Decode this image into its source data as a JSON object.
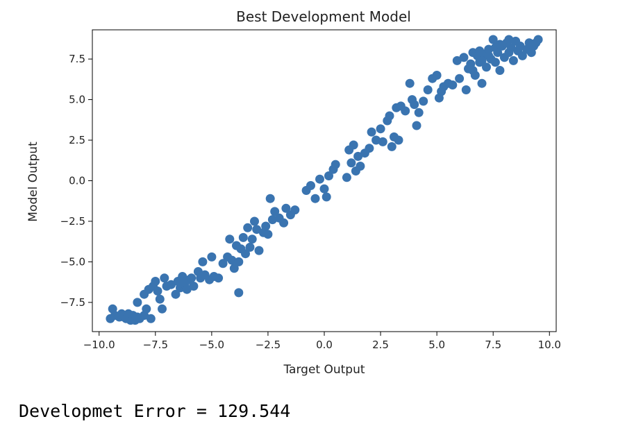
{
  "output_text": "Developmet Error = 129.544",
  "chart_data": {
    "type": "scatter",
    "title": "Best Development Model",
    "xlabel": "Target Output",
    "ylabel": "Model Output",
    "xlim": [
      -10.3,
      10.3
    ],
    "ylim": [
      -9.3,
      9.3
    ],
    "xticks": [
      -10.0,
      -7.5,
      -5.0,
      -2.5,
      0.0,
      2.5,
      5.0,
      7.5,
      10.0
    ],
    "xtick_labels": [
      "−10.0",
      "−7.5",
      "−5.0",
      "−2.5",
      "0.0",
      "2.5",
      "5.0",
      "7.5",
      "10.0"
    ],
    "yticks": [
      -7.5,
      -5.0,
      -2.5,
      0.0,
      2.5,
      5.0,
      7.5
    ],
    "ytick_labels": [
      "−7.5",
      "−5.0",
      "−2.5",
      "0.0",
      "2.5",
      "5.0",
      "7.5"
    ],
    "grid": false,
    "marker_color": "#3a74b0",
    "points": [
      [
        -9.5,
        -8.5
      ],
      [
        -9.4,
        -7.9
      ],
      [
        -9.3,
        -8.3
      ],
      [
        -9.1,
        -8.4
      ],
      [
        -9.0,
        -8.2
      ],
      [
        -8.9,
        -8.4
      ],
      [
        -8.8,
        -8.5
      ],
      [
        -8.7,
        -8.2
      ],
      [
        -8.6,
        -8.6
      ],
      [
        -8.5,
        -8.3
      ],
      [
        -8.4,
        -8.6
      ],
      [
        -8.3,
        -8.4
      ],
      [
        -8.2,
        -8.5
      ],
      [
        -8.0,
        -8.3
      ],
      [
        -7.9,
        -7.9
      ],
      [
        -7.7,
        -8.5
      ],
      [
        -8.3,
        -7.5
      ],
      [
        -8.0,
        -7.0
      ],
      [
        -7.8,
        -6.7
      ],
      [
        -7.6,
        -6.5
      ],
      [
        -7.5,
        -6.2
      ],
      [
        -7.4,
        -6.8
      ],
      [
        -7.3,
        -7.3
      ],
      [
        -7.2,
        -7.9
      ],
      [
        -7.1,
        -6.0
      ],
      [
        -7.0,
        -6.5
      ],
      [
        -6.8,
        -6.4
      ],
      [
        -6.6,
        -7.0
      ],
      [
        -6.5,
        -6.2
      ],
      [
        -6.4,
        -6.6
      ],
      [
        -6.3,
        -5.9
      ],
      [
        -6.2,
        -6.4
      ],
      [
        -6.1,
        -6.7
      ],
      [
        -6.0,
        -6.1
      ],
      [
        -5.9,
        -6.0
      ],
      [
        -5.8,
        -6.5
      ],
      [
        -5.6,
        -5.6
      ],
      [
        -5.5,
        -6.0
      ],
      [
        -5.4,
        -5.0
      ],
      [
        -5.3,
        -5.8
      ],
      [
        -5.1,
        -6.1
      ],
      [
        -5.0,
        -4.7
      ],
      [
        -4.9,
        -5.9
      ],
      [
        -4.7,
        -6.0
      ],
      [
        -4.5,
        -5.1
      ],
      [
        -4.3,
        -4.7
      ],
      [
        -4.2,
        -3.6
      ],
      [
        -4.1,
        -4.9
      ],
      [
        -4.0,
        -5.4
      ],
      [
        -3.9,
        -4.0
      ],
      [
        -3.8,
        -5.0
      ],
      [
        -3.7,
        -4.2
      ],
      [
        -3.6,
        -3.5
      ],
      [
        -3.5,
        -4.5
      ],
      [
        -3.4,
        -2.9
      ],
      [
        -3.3,
        -4.1
      ],
      [
        -3.2,
        -3.6
      ],
      [
        -3.1,
        -2.5
      ],
      [
        -3.0,
        -3.0
      ],
      [
        -2.9,
        -4.3
      ],
      [
        -2.7,
        -3.2
      ],
      [
        -2.6,
        -2.8
      ],
      [
        -2.5,
        -3.3
      ],
      [
        -2.4,
        -1.1
      ],
      [
        -2.3,
        -2.4
      ],
      [
        -2.2,
        -1.9
      ],
      [
        -2.0,
        -2.3
      ],
      [
        -1.8,
        -2.6
      ],
      [
        -1.7,
        -1.7
      ],
      [
        -1.5,
        -2.1
      ],
      [
        -1.3,
        -1.8
      ],
      [
        -3.8,
        -6.9
      ],
      [
        -0.8,
        -0.6
      ],
      [
        -0.6,
        -0.3
      ],
      [
        -0.4,
        -1.1
      ],
      [
        -0.2,
        0.1
      ],
      [
        0.0,
        -0.5
      ],
      [
        0.1,
        -1.0
      ],
      [
        0.2,
        0.3
      ],
      [
        0.4,
        0.7
      ],
      [
        0.5,
        1.0
      ],
      [
        1.0,
        0.2
      ],
      [
        1.1,
        1.9
      ],
      [
        1.2,
        1.1
      ],
      [
        1.3,
        2.2
      ],
      [
        1.4,
        0.6
      ],
      [
        1.5,
        1.5
      ],
      [
        1.6,
        0.9
      ],
      [
        1.8,
        1.7
      ],
      [
        2.0,
        2.0
      ],
      [
        2.1,
        3.0
      ],
      [
        2.3,
        2.5
      ],
      [
        2.5,
        3.2
      ],
      [
        2.6,
        2.4
      ],
      [
        2.8,
        3.7
      ],
      [
        2.9,
        4.0
      ],
      [
        3.0,
        2.1
      ],
      [
        3.1,
        2.7
      ],
      [
        3.2,
        4.5
      ],
      [
        3.3,
        2.5
      ],
      [
        3.4,
        4.6
      ],
      [
        3.6,
        4.3
      ],
      [
        3.8,
        6.0
      ],
      [
        3.9,
        5.0
      ],
      [
        4.0,
        4.7
      ],
      [
        4.1,
        3.4
      ],
      [
        4.2,
        4.2
      ],
      [
        4.4,
        4.9
      ],
      [
        4.6,
        5.6
      ],
      [
        4.8,
        6.3
      ],
      [
        5.0,
        6.5
      ],
      [
        5.1,
        5.1
      ],
      [
        5.2,
        5.5
      ],
      [
        5.3,
        5.8
      ],
      [
        5.5,
        6.0
      ],
      [
        5.7,
        5.9
      ],
      [
        5.9,
        7.4
      ],
      [
        6.0,
        6.3
      ],
      [
        6.2,
        7.6
      ],
      [
        6.3,
        5.6
      ],
      [
        6.4,
        6.9
      ],
      [
        6.5,
        7.2
      ],
      [
        6.6,
        7.9
      ],
      [
        6.7,
        6.5
      ],
      [
        6.8,
        7.7
      ],
      [
        6.9,
        7.3
      ],
      [
        7.0,
        6.0
      ],
      [
        7.1,
        7.8
      ],
      [
        7.2,
        7.0
      ],
      [
        7.3,
        8.1
      ],
      [
        7.4,
        7.5
      ],
      [
        7.5,
        8.7
      ],
      [
        7.6,
        7.3
      ],
      [
        7.7,
        7.9
      ],
      [
        7.8,
        6.8
      ],
      [
        7.9,
        8.3
      ],
      [
        8.0,
        7.6
      ],
      [
        8.1,
        8.5
      ],
      [
        8.2,
        7.9
      ],
      [
        8.3,
        8.2
      ],
      [
        8.4,
        7.4
      ],
      [
        8.5,
        8.6
      ],
      [
        8.6,
        8.0
      ],
      [
        8.7,
        8.3
      ],
      [
        8.8,
        7.7
      ],
      [
        9.0,
        8.1
      ],
      [
        9.1,
        8.5
      ],
      [
        9.2,
        7.9
      ],
      [
        9.3,
        8.3
      ],
      [
        9.4,
        8.5
      ],
      [
        9.5,
        8.7
      ],
      [
        6.6,
        6.8
      ],
      [
        7.0,
        7.4
      ],
      [
        7.6,
        8.2
      ],
      [
        8.2,
        8.7
      ],
      [
        6.9,
        8.0
      ],
      [
        7.3,
        7.7
      ],
      [
        7.8,
        8.4
      ]
    ]
  }
}
